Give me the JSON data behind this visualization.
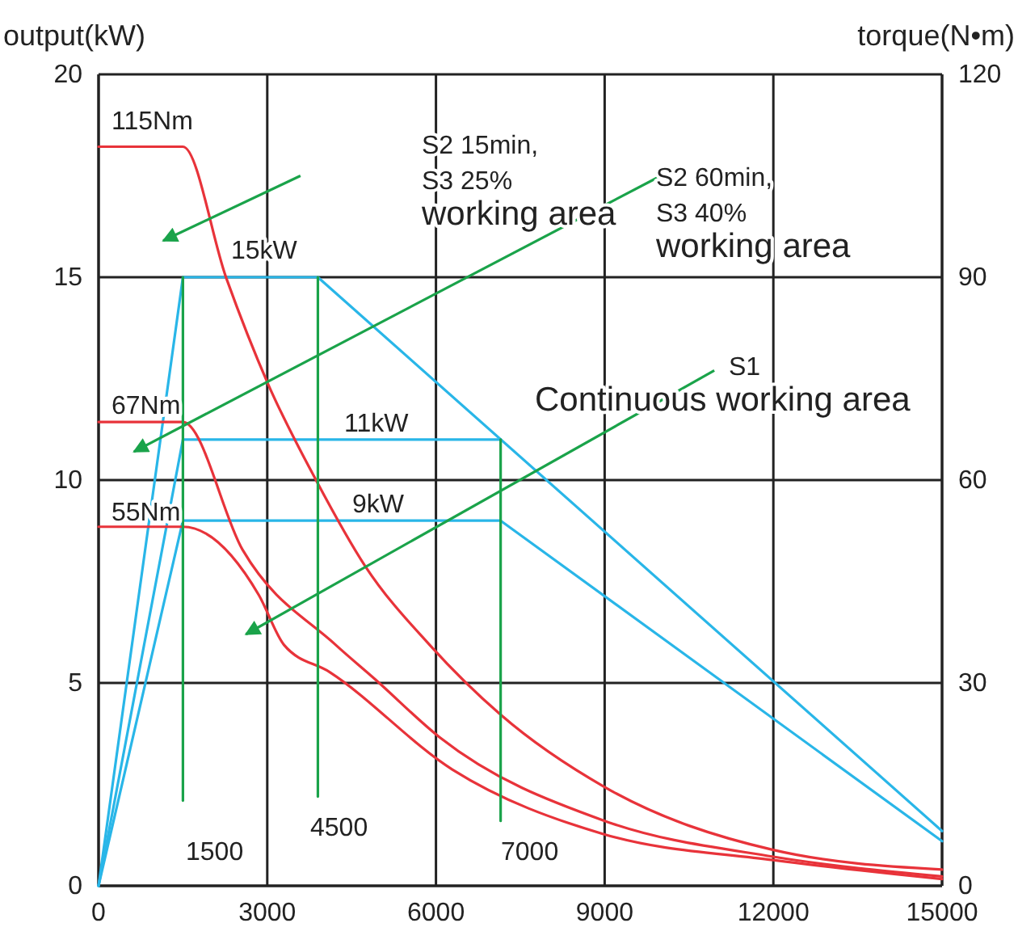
{
  "chart_data": {
    "type": "line",
    "ylabel": "output(kW)",
    "y2label": "torque(N•m)",
    "xlim": [
      0,
      15000
    ],
    "xticks": [
      0,
      3000,
      6000,
      9000,
      12000,
      15000
    ],
    "ylim": [
      0,
      20
    ],
    "yticks": [
      0,
      5,
      10,
      15,
      20
    ],
    "y2lim": [
      0,
      120
    ],
    "y2ticks": [
      0,
      30,
      60,
      90,
      120
    ],
    "grid": true,
    "series": [
      {
        "color": "#29b6e8",
        "x": [
          0,
          1500,
          3900,
          15000
        ],
        "values": [
          0,
          15,
          15,
          1.35
        ]
      },
      {
        "color": "#29b6e8",
        "x": [
          0,
          1500,
          7150
        ],
        "values": [
          0,
          11,
          11
        ]
      },
      {
        "color": "#29b6e8",
        "x": [
          0,
          1500,
          7150,
          15000
        ],
        "values": [
          0,
          9,
          9,
          1.1
        ]
      },
      {
        "color": "#e8333a",
        "axis": "y2",
        "x": [
          0,
          1500,
          2270,
          3020,
          3880,
          4740,
          5890,
          7150,
          9000,
          12000,
          15000
        ],
        "values": [
          109.3,
          109.3,
          89.9,
          74.1,
          59.8,
          47.3,
          35.6,
          25.3,
          14.6,
          5.3,
          2.4
        ]
      },
      {
        "color": "#e8333a",
        "axis": "y2",
        "x": [
          0,
          1500,
          2560,
          4220,
          4910,
          6060,
          9000,
          12000,
          15000
        ],
        "values": [
          68.6,
          68.6,
          49.7,
          35.6,
          30.6,
          22.0,
          9.6,
          4.3,
          1.4
        ]
      },
      {
        "color": "#e8333a",
        "axis": "y2",
        "x": [
          0,
          1500,
          2850,
          3300,
          4110,
          6290,
          9000,
          12000,
          15000
        ],
        "values": [
          53.1,
          53.1,
          43.0,
          35.6,
          31.6,
          17.2,
          7.6,
          3.8,
          1.0
        ]
      },
      {
        "color": "#1aa34a",
        "x": [
          1500,
          1500
        ],
        "values": [
          15,
          2.1
        ]
      },
      {
        "color": "#1aa34a",
        "x": [
          3900,
          3900
        ],
        "values": [
          15,
          2.2
        ]
      },
      {
        "color": "#1aa34a",
        "x": [
          7150,
          7150
        ],
        "values": [
          11,
          1.6
        ]
      }
    ],
    "annotations": [
      "115Nm",
      "67Nm",
      "55Nm",
      "15kW",
      "11kW",
      "9kW",
      "1500",
      "4500",
      "7000",
      "S2 15min,\nS3 25%\nworking area",
      "S2 60min,\nS3 40%\nworking area",
      "S1\nContinuous working area"
    ]
  }
}
